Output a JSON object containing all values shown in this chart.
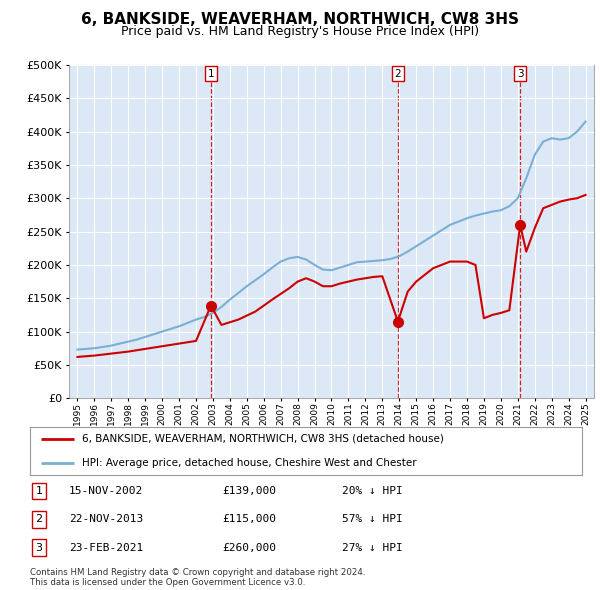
{
  "title": "6, BANKSIDE, WEAVERHAM, NORTHWICH, CW8 3HS",
  "subtitle": "Price paid vs. HM Land Registry's House Price Index (HPI)",
  "title_fontsize": 11,
  "subtitle_fontsize": 9,
  "background_color": "#ffffff",
  "plot_bg_color": "#dce8f5",
  "grid_color": "#ffffff",
  "ylim": [
    0,
    500000
  ],
  "yticks": [
    0,
    50000,
    100000,
    150000,
    200000,
    250000,
    300000,
    350000,
    400000,
    450000,
    500000
  ],
  "sale_dates_num": [
    2002.88,
    2013.92,
    2021.14
  ],
  "sale_prices": [
    139000,
    115000,
    260000
  ],
  "sale_labels": [
    "1",
    "2",
    "3"
  ],
  "vline_color": "#cc0000",
  "sale_marker_color": "#cc0000",
  "hpi_line_color": "#7bafd4",
  "price_line_color": "#cc0000",
  "legend_label_red": "6, BANKSIDE, WEAVERHAM, NORTHWICH, CW8 3HS (detached house)",
  "legend_label_blue": "HPI: Average price, detached house, Cheshire West and Chester",
  "table_data": [
    {
      "num": "1",
      "date": "15-NOV-2002",
      "price": "£139,000",
      "change": "20% ↓ HPI"
    },
    {
      "num": "2",
      "date": "22-NOV-2013",
      "price": "£115,000",
      "change": "57% ↓ HPI"
    },
    {
      "num": "3",
      "date": "23-FEB-2021",
      "price": "£260,000",
      "change": "27% ↓ HPI"
    }
  ],
  "footnote": "Contains HM Land Registry data © Crown copyright and database right 2024.\nThis data is licensed under the Open Government Licence v3.0.",
  "hpi_x": [
    1995.0,
    1995.5,
    1996.0,
    1996.5,
    1997.0,
    1997.5,
    1998.0,
    1998.5,
    1999.0,
    1999.5,
    2000.0,
    2000.5,
    2001.0,
    2001.5,
    2002.0,
    2002.5,
    2003.0,
    2003.5,
    2004.0,
    2004.5,
    2005.0,
    2005.5,
    2006.0,
    2006.5,
    2007.0,
    2007.5,
    2008.0,
    2008.5,
    2009.0,
    2009.5,
    2010.0,
    2010.5,
    2011.0,
    2011.5,
    2012.0,
    2012.5,
    2013.0,
    2013.5,
    2014.0,
    2014.5,
    2015.0,
    2015.5,
    2016.0,
    2016.5,
    2017.0,
    2017.5,
    2018.0,
    2018.5,
    2019.0,
    2019.5,
    2020.0,
    2020.5,
    2021.0,
    2021.5,
    2022.0,
    2022.5,
    2023.0,
    2023.5,
    2024.0,
    2024.5,
    2025.0
  ],
  "hpi_y": [
    73000,
    74000,
    75000,
    77000,
    79000,
    82000,
    85000,
    88000,
    92000,
    96000,
    100000,
    104000,
    108000,
    113000,
    118000,
    122000,
    128000,
    137000,
    148000,
    158000,
    168000,
    177000,
    186000,
    196000,
    205000,
    210000,
    212000,
    208000,
    200000,
    193000,
    192000,
    196000,
    200000,
    204000,
    205000,
    206000,
    207000,
    209000,
    213000,
    220000,
    228000,
    236000,
    244000,
    252000,
    260000,
    265000,
    270000,
    274000,
    277000,
    280000,
    282000,
    288000,
    300000,
    330000,
    365000,
    385000,
    390000,
    388000,
    390000,
    400000,
    415000
  ],
  "pp_x": [
    1995.0,
    1996.0,
    1997.0,
    1998.0,
    1999.0,
    2000.0,
    2001.0,
    2002.0,
    2002.88,
    2003.5,
    2004.5,
    2005.5,
    2006.5,
    2007.5,
    2008.0,
    2008.5,
    2009.0,
    2009.5,
    2010.0,
    2010.5,
    2011.0,
    2011.5,
    2012.0,
    2012.5,
    2013.0,
    2013.92,
    2014.5,
    2015.0,
    2015.5,
    2016.0,
    2016.5,
    2017.0,
    2017.5,
    2018.0,
    2018.5,
    2019.0,
    2019.5,
    2020.0,
    2020.5,
    2021.14,
    2021.5,
    2022.0,
    2022.5,
    2023.0,
    2023.5,
    2024.0,
    2024.5,
    2025.0
  ],
  "pp_y": [
    62000,
    64000,
    67000,
    70000,
    74000,
    78000,
    82000,
    86000,
    139000,
    110000,
    118000,
    130000,
    148000,
    165000,
    175000,
    180000,
    175000,
    168000,
    168000,
    172000,
    175000,
    178000,
    180000,
    182000,
    183000,
    115000,
    160000,
    175000,
    185000,
    195000,
    200000,
    205000,
    205000,
    205000,
    200000,
    120000,
    125000,
    128000,
    132000,
    260000,
    220000,
    255000,
    285000,
    290000,
    295000,
    298000,
    300000,
    305000
  ]
}
